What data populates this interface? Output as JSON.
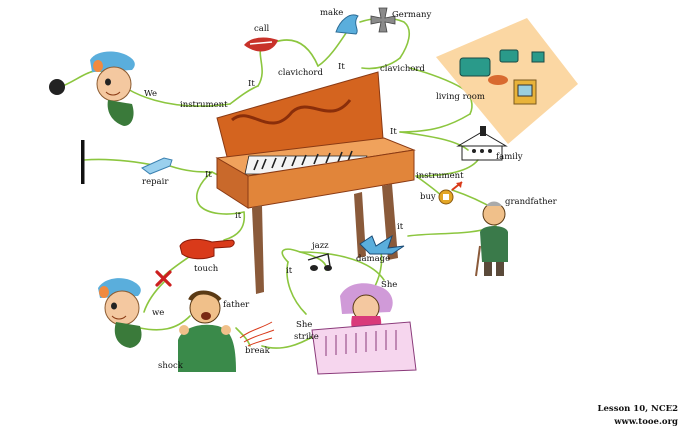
{
  "labels": {
    "call": "call",
    "make": "make",
    "germany": "Germany",
    "it_top": "It",
    "clavichord_1": "clavichord",
    "it_mid": "It",
    "clavichord_2": "clavichord",
    "we_top": "We",
    "instrument_1": "instrument",
    "living_room": "living room",
    "it_right": "It",
    "family": "family",
    "repair": "repair",
    "it_left": "It",
    "instrument_2": "instrument",
    "buy": "buy",
    "grandfather": "grandfather",
    "it_lower": "it",
    "touch": "touch",
    "it_damage": "it",
    "jazz": "jazz",
    "damage": "damage",
    "it_jazz": "it",
    "she": "She",
    "father": "father",
    "we_bottom": "we",
    "she_strike_1": "She",
    "she_strike_2": "strike",
    "break": "break",
    "shock": "shock"
  },
  "footer": {
    "line1": "Lesson 10, NCE2",
    "line2": "www.tooe.org"
  },
  "colors": {
    "link_line": "#8cc63f",
    "room_bg": "#fbd7a3",
    "clavichord_body": "#e1853a",
    "clavichord_lid": "#d4641f",
    "clavichord_leg": "#8a5a3a",
    "arrow_red": "#d93a1a",
    "cross_red": "#cc2020",
    "icon_blue": "#5aaedc"
  }
}
